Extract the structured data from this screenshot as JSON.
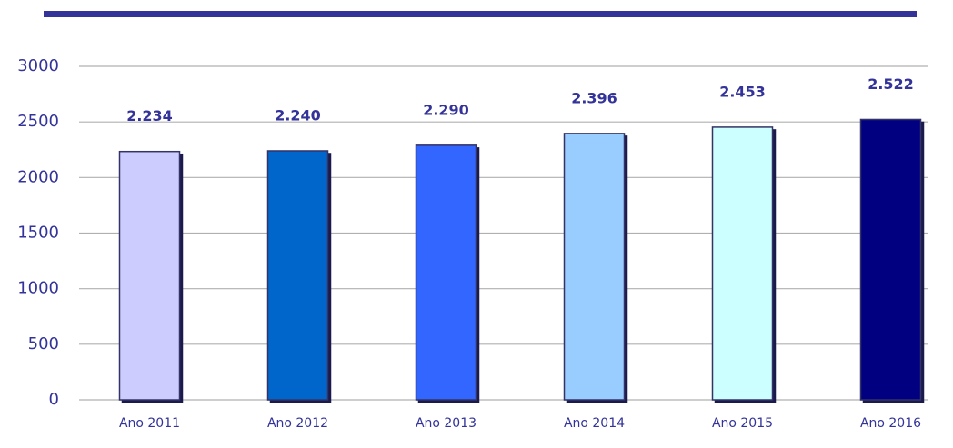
{
  "chart_data": {
    "type": "bar",
    "categories": [
      "Ano 2011",
      "Ano 2012",
      "Ano 2013",
      "Ano 2014",
      "Ano 2015",
      "Ano 2016"
    ],
    "values": [
      2234,
      2240,
      2290,
      2396,
      2453,
      2522
    ],
    "value_labels": [
      "2.234",
      "2.240",
      "2.290",
      "2.396",
      "2.453",
      "2.522"
    ],
    "colors": [
      "#ccccff",
      "#0066cc",
      "#3366ff",
      "#99ccff",
      "#ccffff",
      "#000080"
    ],
    "ylim": [
      0,
      3000
    ],
    "yticks": [
      0,
      500,
      1000,
      1500,
      2000,
      2500,
      3000
    ],
    "grid": true
  }
}
